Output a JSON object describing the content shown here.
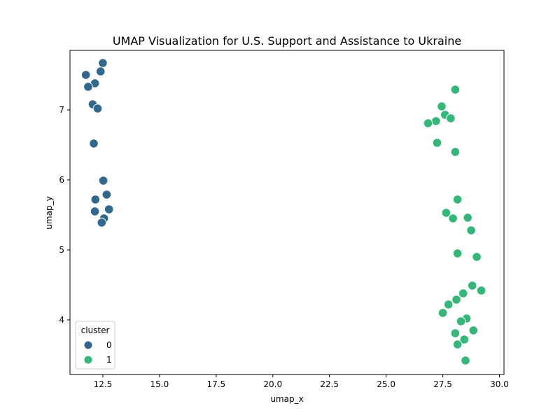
{
  "chart_data": {
    "type": "scatter",
    "title": "UMAP Visualization for U.S. Support and Assistance to Ukraine",
    "xlabel": "umap_x",
    "ylabel": "umap_y",
    "xlim": [
      11.05,
      30.2
    ],
    "ylim": [
      3.22,
      7.85
    ],
    "xticks": [
      "12.5",
      "15.0",
      "17.5",
      "20.0",
      "22.5",
      "25.0",
      "27.5",
      "30.0"
    ],
    "yticks": [
      "4",
      "5",
      "6",
      "7"
    ],
    "xtick_values": [
      12.5,
      15.0,
      17.5,
      20.0,
      22.5,
      25.0,
      27.5,
      30.0
    ],
    "ytick_values": [
      4,
      5,
      6,
      7
    ],
    "grid": false,
    "legend": {
      "title": "cluster",
      "placement": "lower-left"
    },
    "series": [
      {
        "name": "0",
        "color": "#31688e",
        "points": [
          [
            12.5,
            7.67
          ],
          [
            12.4,
            7.55
          ],
          [
            11.75,
            7.5
          ],
          [
            12.15,
            7.38
          ],
          [
            11.85,
            7.33
          ],
          [
            12.05,
            7.08
          ],
          [
            12.27,
            7.02
          ],
          [
            12.1,
            6.52
          ],
          [
            12.52,
            5.99
          ],
          [
            12.67,
            5.79
          ],
          [
            12.17,
            5.72
          ],
          [
            12.77,
            5.58
          ],
          [
            12.15,
            5.55
          ],
          [
            12.55,
            5.45
          ],
          [
            12.45,
            5.39
          ]
        ]
      },
      {
        "name": "1",
        "color": "#35b779",
        "points": [
          [
            28.05,
            7.29
          ],
          [
            27.45,
            7.05
          ],
          [
            27.6,
            6.93
          ],
          [
            27.85,
            6.88
          ],
          [
            27.2,
            6.84
          ],
          [
            26.85,
            6.81
          ],
          [
            27.25,
            6.53
          ],
          [
            28.05,
            6.4
          ],
          [
            28.15,
            5.72
          ],
          [
            27.65,
            5.53
          ],
          [
            28.6,
            5.46
          ],
          [
            27.95,
            5.45
          ],
          [
            28.75,
            5.28
          ],
          [
            28.15,
            4.95
          ],
          [
            29.0,
            4.9
          ],
          [
            28.8,
            4.49
          ],
          [
            29.2,
            4.42
          ],
          [
            28.4,
            4.38
          ],
          [
            28.1,
            4.29
          ],
          [
            27.75,
            4.22
          ],
          [
            27.5,
            4.1
          ],
          [
            28.55,
            4.02
          ],
          [
            28.3,
            3.98
          ],
          [
            28.85,
            3.85
          ],
          [
            28.05,
            3.81
          ],
          [
            28.45,
            3.72
          ],
          [
            28.15,
            3.65
          ],
          [
            28.5,
            3.42
          ]
        ]
      }
    ]
  }
}
